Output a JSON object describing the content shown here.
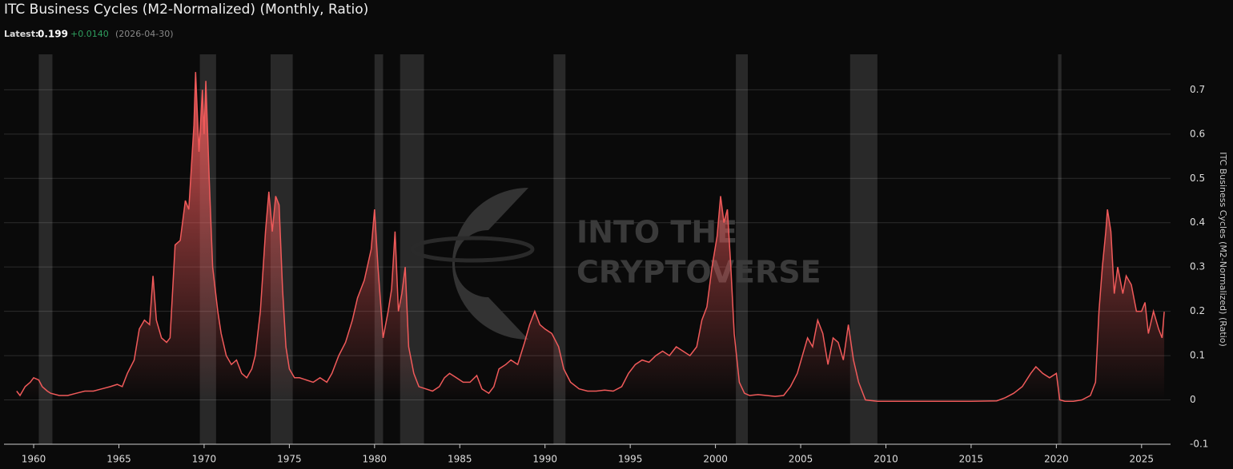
{
  "header": {
    "title": "ITC Business Cycles (M2-Normalized) (Monthly, Ratio)",
    "latest_label": "Latest:",
    "latest_value": 0.199,
    "latest_change": "+0.0140",
    "latest_date": "(2026-04-30)"
  },
  "watermark": [
    "INTO THE",
    "CRYPTOVERSE"
  ],
  "chart_data": {
    "type": "area",
    "y_label": "ITC Business Cycles (M2-Normalized) (Ratio)",
    "xlim": [
      1958.26,
      2026.7
    ],
    "xticks": [
      1960,
      1965,
      1970,
      1975,
      1980,
      1985,
      1990,
      1995,
      2000,
      2005,
      2010,
      2015,
      2020,
      2025
    ],
    "ylim": [
      -0.1,
      0.78
    ],
    "yticks": [
      -0.1,
      0,
      0.1,
      0.2,
      0.3,
      0.4,
      0.5,
      0.6,
      0.7
    ],
    "grid": true,
    "recessions": [
      [
        1960.3,
        1961.1
      ],
      [
        1969.75,
        1970.7
      ],
      [
        1973.9,
        1975.2
      ],
      [
        1980.0,
        1980.5
      ],
      [
        1981.5,
        1982.9
      ],
      [
        1990.5,
        1991.2
      ],
      [
        2001.2,
        2001.9
      ],
      [
        2007.9,
        2009.5
      ],
      [
        2020.1,
        2020.3
      ]
    ],
    "series": [
      {
        "name": "ITC Business Cycles (M2-Normalized)",
        "color": "#f05a5a",
        "x": [
          1959.0,
          1959.2,
          1959.5,
          1959.8,
          1960.0,
          1960.3,
          1960.5,
          1960.8,
          1961.0,
          1961.5,
          1962.0,
          1962.5,
          1963.0,
          1963.5,
          1964.0,
          1964.5,
          1964.9,
          1965.2,
          1965.5,
          1965.9,
          1966.2,
          1966.5,
          1966.8,
          1967.0,
          1967.2,
          1967.5,
          1967.8,
          1968.0,
          1968.3,
          1968.6,
          1968.9,
          1969.1,
          1969.4,
          1969.5,
          1969.7,
          1969.9,
          1970.0,
          1970.1,
          1970.3,
          1970.5,
          1970.8,
          1971.0,
          1971.3,
          1971.6,
          1971.9,
          1972.2,
          1972.5,
          1972.8,
          1973.0,
          1973.3,
          1973.6,
          1973.8,
          1974.0,
          1974.2,
          1974.4,
          1974.6,
          1974.8,
          1975.0,
          1975.3,
          1975.6,
          1976.0,
          1976.4,
          1976.8,
          1977.2,
          1977.5,
          1977.9,
          1978.3,
          1978.7,
          1979.0,
          1979.4,
          1979.8,
          1980.0,
          1980.2,
          1980.5,
          1980.8,
          1981.0,
          1981.2,
          1981.4,
          1981.6,
          1981.8,
          1982.0,
          1982.3,
          1982.6,
          1983.0,
          1983.4,
          1983.8,
          1984.1,
          1984.4,
          1984.8,
          1985.2,
          1985.6,
          1986.0,
          1986.3,
          1986.7,
          1987.0,
          1987.3,
          1987.7,
          1988.0,
          1988.4,
          1988.8,
          1989.1,
          1989.4,
          1989.7,
          1990.0,
          1990.4,
          1990.8,
          1991.1,
          1991.5,
          1992.0,
          1992.5,
          1993.0,
          1993.5,
          1994.0,
          1994.5,
          1994.9,
          1995.3,
          1995.7,
          1996.1,
          1996.5,
          1996.9,
          1997.3,
          1997.7,
          1998.1,
          1998.5,
          1998.9,
          1999.2,
          1999.5,
          1999.8,
          2000.1,
          2000.3,
          2000.5,
          2000.7,
          2000.9,
          2001.1,
          2001.4,
          2001.7,
          2002.0,
          2002.5,
          2003.0,
          2003.5,
          2004.0,
          2004.4,
          2004.8,
          2005.1,
          2005.4,
          2005.7,
          2006.0,
          2006.3,
          2006.6,
          2006.9,
          2007.2,
          2007.5,
          2007.8,
          2008.1,
          2008.4,
          2008.8,
          2009.5,
          2012.0,
          2015.0,
          2016.5,
          2017.0,
          2017.5,
          2018.0,
          2018.5,
          2018.8,
          2019.2,
          2019.6,
          2020.0,
          2020.2,
          2020.5,
          2021.0,
          2021.5,
          2022.0,
          2022.3,
          2022.5,
          2022.7,
          2022.9,
          2023.0,
          2023.2,
          2023.4,
          2023.6,
          2023.9,
          2024.1,
          2024.4,
          2024.7,
          2025.0,
          2025.2,
          2025.4,
          2025.7,
          2026.0,
          2026.2,
          2026.33
        ],
        "values": [
          0.02,
          0.01,
          0.03,
          0.04,
          0.05,
          0.045,
          0.03,
          0.02,
          0.015,
          0.01,
          0.01,
          0.015,
          0.02,
          0.02,
          0.025,
          0.03,
          0.035,
          0.03,
          0.06,
          0.09,
          0.16,
          0.18,
          0.17,
          0.28,
          0.18,
          0.14,
          0.13,
          0.14,
          0.35,
          0.36,
          0.45,
          0.43,
          0.62,
          0.74,
          0.56,
          0.7,
          0.6,
          0.72,
          0.5,
          0.3,
          0.2,
          0.15,
          0.1,
          0.08,
          0.09,
          0.06,
          0.05,
          0.07,
          0.1,
          0.2,
          0.38,
          0.47,
          0.38,
          0.46,
          0.44,
          0.25,
          0.12,
          0.07,
          0.05,
          0.05,
          0.045,
          0.04,
          0.05,
          0.04,
          0.06,
          0.1,
          0.13,
          0.18,
          0.23,
          0.27,
          0.34,
          0.43,
          0.3,
          0.14,
          0.2,
          0.25,
          0.38,
          0.2,
          0.24,
          0.3,
          0.12,
          0.06,
          0.03,
          0.025,
          0.02,
          0.03,
          0.05,
          0.06,
          0.05,
          0.04,
          0.04,
          0.055,
          0.025,
          0.015,
          0.03,
          0.07,
          0.08,
          0.09,
          0.08,
          0.13,
          0.17,
          0.2,
          0.17,
          0.16,
          0.15,
          0.12,
          0.07,
          0.04,
          0.025,
          0.02,
          0.02,
          0.022,
          0.02,
          0.03,
          0.06,
          0.08,
          0.09,
          0.085,
          0.1,
          0.11,
          0.1,
          0.12,
          0.11,
          0.1,
          0.12,
          0.18,
          0.21,
          0.3,
          0.37,
          0.46,
          0.4,
          0.43,
          0.3,
          0.15,
          0.04,
          0.015,
          0.01,
          0.012,
          0.01,
          0.008,
          0.01,
          0.03,
          0.06,
          0.1,
          0.14,
          0.12,
          0.18,
          0.15,
          0.08,
          0.14,
          0.13,
          0.09,
          0.17,
          0.09,
          0.04,
          0.0,
          -0.003,
          -0.003,
          -0.003,
          -0.002,
          0.005,
          0.015,
          0.03,
          0.06,
          0.075,
          0.06,
          0.05,
          0.06,
          0.0,
          -0.003,
          -0.003,
          0.0,
          0.01,
          0.04,
          0.2,
          0.3,
          0.38,
          0.43,
          0.38,
          0.24,
          0.3,
          0.24,
          0.28,
          0.26,
          0.2,
          0.2,
          0.22,
          0.15,
          0.2,
          0.16,
          0.14,
          0.199
        ]
      }
    ]
  }
}
